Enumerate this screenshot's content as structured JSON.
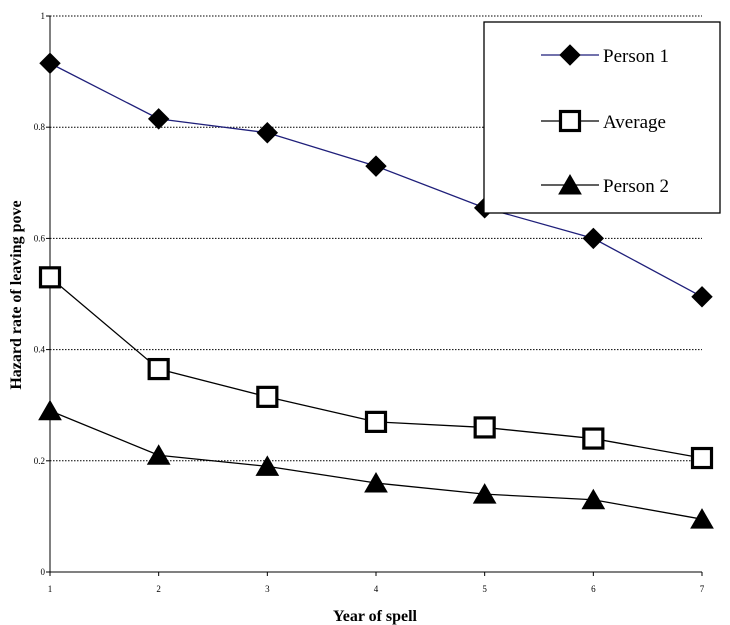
{
  "chart_data": {
    "type": "line",
    "xlabel": "Year of spell",
    "ylabel": "Hazard rate of leaving pove",
    "x": [
      1,
      2,
      3,
      4,
      5,
      6,
      7
    ],
    "xlim": [
      1,
      7
    ],
    "ylim": [
      0,
      1
    ],
    "yticks": [
      0,
      0.2,
      0.4,
      0.6,
      0.8,
      1
    ],
    "ytick_labels": [
      "0",
      "0.2",
      "0.4",
      "0.6",
      "0.8",
      "1"
    ],
    "xtick_labels": [
      "1",
      "2",
      "3",
      "4",
      "5",
      "6",
      "7"
    ],
    "grid": "horizontal dotted",
    "legend_placement": "top-right",
    "series": [
      {
        "name": "Person 1",
        "values": [
          0.915,
          0.815,
          0.79,
          0.73,
          0.655,
          0.6,
          0.495
        ],
        "color": "#1f1f7a",
        "marker": "diamond"
      },
      {
        "name": "Average",
        "values": [
          0.53,
          0.365,
          0.315,
          0.27,
          0.26,
          0.24,
          0.205
        ],
        "color": "#000000",
        "marker": "square"
      },
      {
        "name": "Person 2",
        "values": [
          0.29,
          0.21,
          0.19,
          0.16,
          0.14,
          0.13,
          0.095
        ],
        "color": "#000000",
        "marker": "triangle"
      }
    ]
  }
}
